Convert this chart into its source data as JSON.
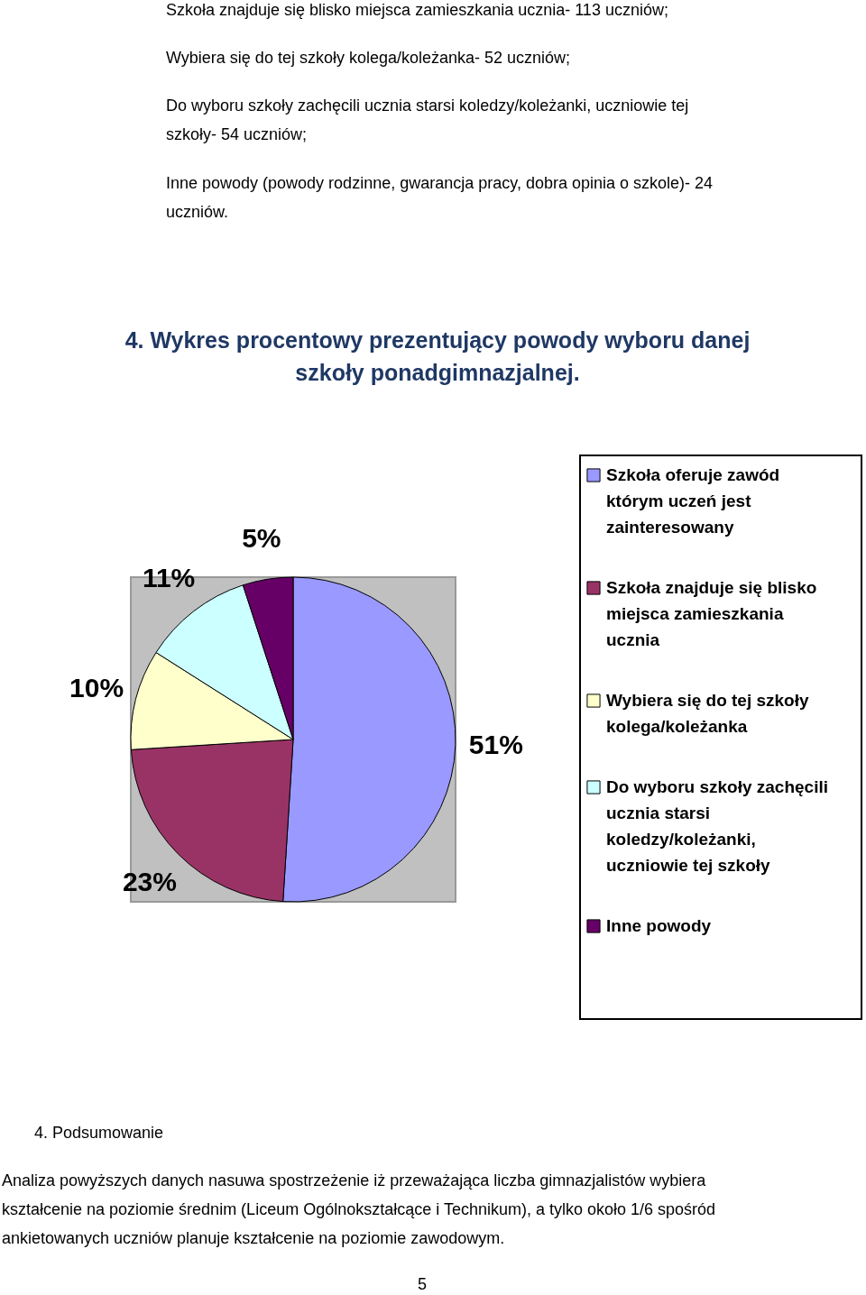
{
  "chart_data": {
    "type": "pie",
    "title": "4. Wykres procentowy prezentujący powody wyboru danej szkoły ponadgimnazjalnej.",
    "categories": [
      "Szkoła oferuje zawód którym uczeń jest zainteresowany",
      "Szkoła znajduje się blisko miejsca zamieszkania ucznia",
      "Wybiera się do tej szkoły kolega/koleżanka",
      "Do wyboru szkoły zachęcili ucznia starsi koledzy/koleżanki, uczniowie tej szkoły",
      "Inne powody"
    ],
    "values": [
      51,
      23,
      10,
      11,
      5
    ],
    "value_labels": [
      "51%",
      "23%",
      "10%",
      "11%",
      "5%"
    ],
    "colors": [
      "#9999ff",
      "#993366",
      "#ffffcc",
      "#ccffff",
      "#660066"
    ],
    "legend": "right",
    "annotations": [
      "Szkoła znajduje się blisko miejsca zamieszkania ucznia- 113 uczniów;",
      "Wybiera się do tej szkoły kolega/koleżanka- 52 uczniów;",
      "Do wyboru szkoły zachęcili ucznia starsi koledzy/koleżanki, uczniowie tej szkoły- 54 uczniów;",
      "Inne powody (powody rodzinne, gwarancja pracy, dobra opinia o szkole)- 24 uczniów.",
      "4. Podsumowanie",
      "Analiza powyższych danych nasuwa spostrzeżenie iż przeważająca liczba gimnazjalistów wybiera kształcenie na poziomie średnim (Liceum Ogólnokształcące i Technikum), a tylko około 1/6 spośród ankietowanych uczniów planuje kształcenie na poziomie zawodowym.",
      "5"
    ]
  }
}
